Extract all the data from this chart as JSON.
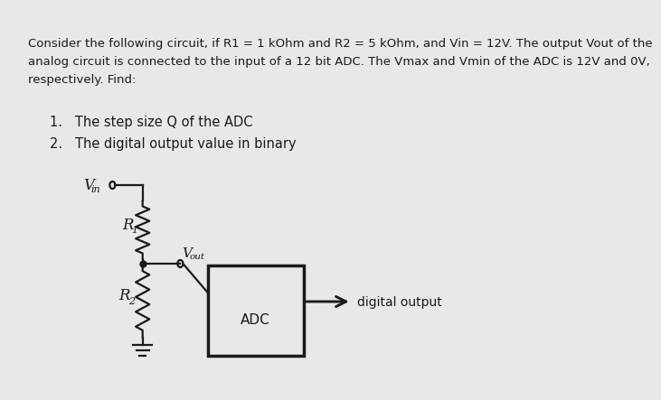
{
  "bg_color": "#e8e8e6",
  "text_color": "#1a1a1a",
  "line1": "Consider the following circuit, if R1 = 1 kOhm and R2 = 5 kOhm, and Vin = 12V. The output Vout of the",
  "line2": "analog circuit is connected to the input of a 12 bit ADC. The Vmax and Vmin of the ADC is 12V and 0V,",
  "line3": "respectively. Find:",
  "item1": "1.   The step size Q of the ADC",
  "item2": "2.   The digital output value in binary",
  "adc_label": "ADC",
  "digital_output_label": "digital output",
  "circuit_color": "#1a1a1a",
  "font_size_body": 9.5,
  "font_size_list": 10.5,
  "font_size_circuit": 11
}
